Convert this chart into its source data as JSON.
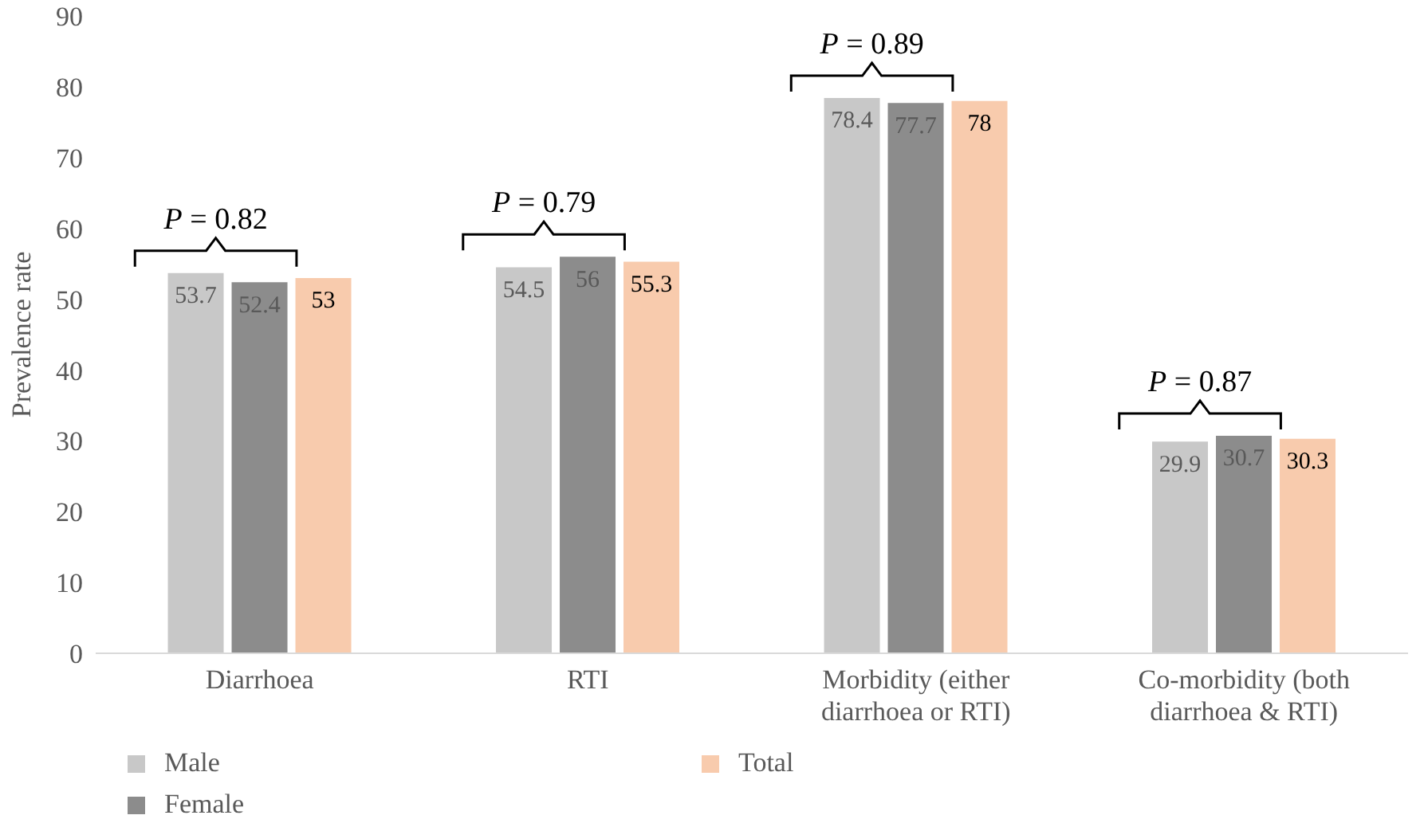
{
  "chart_data": {
    "type": "bar",
    "ylabel": "Prevalence rate",
    "categories": [
      "Diarrhoea",
      "RTI",
      "Morbidity (either diarrhoea or RTI)",
      "Co-morbidity (both diarrhoea & RTI)"
    ],
    "series": [
      {
        "name": "Male",
        "color": "#c8c8c8",
        "values": [
          53.7,
          54.5,
          78.4,
          29.9
        ]
      },
      {
        "name": "Female",
        "color": "#8c8c8c",
        "values": [
          52.4,
          56,
          77.7,
          30.7
        ]
      },
      {
        "name": "Total",
        "color": "#f8cbad",
        "values": [
          53,
          55.3,
          78,
          30.3
        ]
      }
    ],
    "ylim": [
      0,
      90
    ],
    "yticks": [
      0,
      10,
      20,
      30,
      40,
      50,
      60,
      70,
      80,
      90
    ],
    "grid": false,
    "data_labels": true,
    "legend": "bottom left",
    "annotations": [
      "P = 0.82",
      "P = 0.79",
      "P = 0.89",
      "P = 0.87"
    ]
  }
}
